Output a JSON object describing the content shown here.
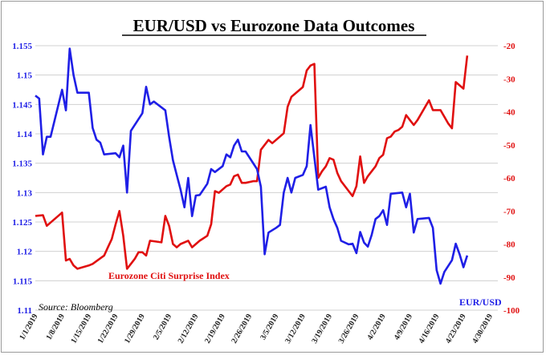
{
  "chart_data": {
    "type": "line",
    "title": "EUR/USD vs Eurozone Data Outcomes",
    "source": "Source: Bloomberg",
    "grid": true,
    "x_tick_labels": [
      "1/1/2019",
      "1/8/2019",
      "1/15/2019",
      "1/22/2019",
      "1/29/2019",
      "2/5/2019",
      "2/12/2019",
      "2/19/2019",
      "2/26/2019",
      "3/5/2019",
      "3/12/2019",
      "3/19/2019",
      "3/26/2019",
      "4/2/2019",
      "4/9/2019",
      "4/16/2019",
      "4/23/2019",
      "4/30/2019"
    ],
    "x_range": [
      0,
      121
    ],
    "y_left": {
      "range": [
        1.11,
        1.155
      ],
      "ticks": [
        "1.11",
        "1.115",
        "1.12",
        "1.125",
        "1.13",
        "1.135",
        "1.14",
        "1.145",
        "1.15",
        "1.155"
      ]
    },
    "y_right": {
      "range": [
        -100,
        -20
      ],
      "ticks": [
        "-100",
        "-90",
        "-80",
        "-70",
        "-60",
        "-50",
        "-40",
        "-30",
        "-20"
      ]
    },
    "series": [
      {
        "name": "EUR/USD",
        "axis": "left",
        "color": "#1f1fe6",
        "points": [
          [
            0,
            1.1465
          ],
          [
            1,
            1.146
          ],
          [
            2,
            1.1365
          ],
          [
            3,
            1.1395
          ],
          [
            4,
            1.1395
          ],
          [
            7,
            1.1475
          ],
          [
            8,
            1.144
          ],
          [
            9,
            1.1545
          ],
          [
            10,
            1.15
          ],
          [
            11,
            1.147
          ],
          [
            14,
            1.147
          ],
          [
            15,
            1.141
          ],
          [
            16,
            1.139
          ],
          [
            17,
            1.1385
          ],
          [
            18,
            1.1365
          ],
          [
            21,
            1.1367
          ],
          [
            22,
            1.136
          ],
          [
            23,
            1.138
          ],
          [
            24,
            1.13
          ],
          [
            25,
            1.1405
          ],
          [
            28,
            1.1435
          ],
          [
            29,
            1.148
          ],
          [
            30,
            1.145
          ],
          [
            31,
            1.1455
          ],
          [
            34,
            1.144
          ],
          [
            35,
            1.1395
          ],
          [
            36,
            1.1355
          ],
          [
            37,
            1.133
          ],
          [
            38,
            1.1305
          ],
          [
            39,
            1.1275
          ],
          [
            40,
            1.1325
          ],
          [
            41,
            1.126
          ],
          [
            42,
            1.1295
          ],
          [
            43,
            1.1296
          ],
          [
            45,
            1.1315
          ],
          [
            46,
            1.134
          ],
          [
            47,
            1.1335
          ],
          [
            49,
            1.1345
          ],
          [
            50,
            1.1365
          ],
          [
            51,
            1.136
          ],
          [
            52,
            1.138
          ],
          [
            53,
            1.139
          ],
          [
            54,
            1.137
          ],
          [
            55,
            1.137
          ],
          [
            58,
            1.134
          ],
          [
            59,
            1.131
          ],
          [
            60,
            1.1195
          ],
          [
            61,
            1.1232
          ],
          [
            63,
            1.124
          ],
          [
            64,
            1.1245
          ],
          [
            65,
            1.13
          ],
          [
            66,
            1.1325
          ],
          [
            67,
            1.13
          ],
          [
            68,
            1.1325
          ],
          [
            70,
            1.133
          ],
          [
            71,
            1.1345
          ],
          [
            72,
            1.1415
          ],
          [
            73,
            1.136
          ],
          [
            74,
            1.1305
          ],
          [
            76,
            1.131
          ],
          [
            77,
            1.1275
          ],
          [
            78,
            1.1255
          ],
          [
            79,
            1.124
          ],
          [
            80,
            1.1218
          ],
          [
            82,
            1.1212
          ],
          [
            83,
            1.1213
          ],
          [
            84,
            1.1197
          ],
          [
            85,
            1.1233
          ],
          [
            86,
            1.1215
          ],
          [
            87,
            1.1208
          ],
          [
            88,
            1.1228
          ],
          [
            89,
            1.1255
          ],
          [
            90,
            1.126
          ],
          [
            91,
            1.127
          ],
          [
            92,
            1.1245
          ],
          [
            93,
            1.1298
          ],
          [
            96,
            1.13
          ],
          [
            97,
            1.1275
          ],
          [
            98,
            1.1298
          ],
          [
            99,
            1.1232
          ],
          [
            100,
            1.1255
          ],
          [
            103,
            1.1257
          ],
          [
            104,
            1.124
          ],
          [
            105,
            1.1168
          ],
          [
            106,
            1.1145
          ],
          [
            107,
            1.1165
          ],
          [
            109,
            1.1185
          ],
          [
            110,
            1.1213
          ],
          [
            111,
            1.1195
          ],
          [
            112,
            1.1173
          ],
          [
            113,
            1.1193
          ]
        ]
      },
      {
        "name": "Eurozone Citi Surprise Index",
        "axis": "right",
        "color": "#e01010",
        "points": [
          [
            0,
            -71.5
          ],
          [
            2,
            -71.3
          ],
          [
            3,
            -74.5
          ],
          [
            4,
            -73.5
          ],
          [
            7,
            -70.5
          ],
          [
            8,
            -85
          ],
          [
            9,
            -84.5
          ],
          [
            10,
            -86.5
          ],
          [
            11,
            -87.5
          ],
          [
            14,
            -86.5
          ],
          [
            15,
            -86
          ],
          [
            18,
            -83.5
          ],
          [
            19,
            -81
          ],
          [
            20,
            -78.5
          ],
          [
            21,
            -74
          ],
          [
            22,
            -70
          ],
          [
            23,
            -77.5
          ],
          [
            24,
            -87.5
          ],
          [
            25,
            -86
          ],
          [
            26,
            -84.5
          ],
          [
            27,
            -82.5
          ],
          [
            28,
            -82.5
          ],
          [
            29,
            -83.5
          ],
          [
            30,
            -79
          ],
          [
            33,
            -79.5
          ],
          [
            34,
            -71.5
          ],
          [
            35,
            -74.5
          ],
          [
            36,
            -80
          ],
          [
            37,
            -81
          ],
          [
            38,
            -80
          ],
          [
            40,
            -79
          ],
          [
            41,
            -81
          ],
          [
            43,
            -79
          ],
          [
            45,
            -77.5
          ],
          [
            46,
            -74
          ],
          [
            47,
            -64
          ],
          [
            48,
            -64.5
          ],
          [
            50,
            -62.5
          ],
          [
            51,
            -62
          ],
          [
            52,
            -59.5
          ],
          [
            53,
            -59
          ],
          [
            54,
            -61.5
          ],
          [
            55,
            -61.5
          ],
          [
            57,
            -61
          ],
          [
            58,
            -61
          ],
          [
            59,
            -51.5
          ],
          [
            60,
            -50
          ],
          [
            61,
            -48.5
          ],
          [
            62,
            -49.5
          ],
          [
            64,
            -47.5
          ],
          [
            65,
            -46.5
          ],
          [
            66,
            -38.5
          ],
          [
            67,
            -35.5
          ],
          [
            68,
            -34.5
          ],
          [
            70,
            -32.5
          ],
          [
            71,
            -27.5
          ],
          [
            72,
            -26
          ],
          [
            73,
            -25.5
          ],
          [
            74,
            -60
          ],
          [
            75,
            -58
          ],
          [
            76,
            -56.5
          ],
          [
            77,
            -54
          ],
          [
            78,
            -54.5
          ],
          [
            79,
            -58.5
          ],
          [
            80,
            -61
          ],
          [
            82,
            -64
          ],
          [
            83,
            -65.5
          ],
          [
            84,
            -62.5
          ],
          [
            85,
            -53.5
          ],
          [
            86,
            -61.5
          ],
          [
            87,
            -59.5
          ],
          [
            89,
            -56.5
          ],
          [
            90,
            -54
          ],
          [
            91,
            -53
          ],
          [
            92,
            -48
          ],
          [
            93,
            -47.5
          ],
          [
            94,
            -46
          ],
          [
            95,
            -45.5
          ],
          [
            96,
            -44.5
          ],
          [
            97,
            -41
          ],
          [
            98,
            -42.5
          ],
          [
            99,
            -44
          ],
          [
            100,
            -42.5
          ],
          [
            103,
            -36.5
          ],
          [
            104,
            -39.5
          ],
          [
            106,
            -39.5
          ],
          [
            107,
            -41.5
          ],
          [
            108,
            -43.5
          ],
          [
            109,
            -45
          ],
          [
            110,
            -31
          ],
          [
            111,
            -32
          ],
          [
            112,
            -33
          ],
          [
            113,
            -23
          ]
        ]
      }
    ]
  }
}
